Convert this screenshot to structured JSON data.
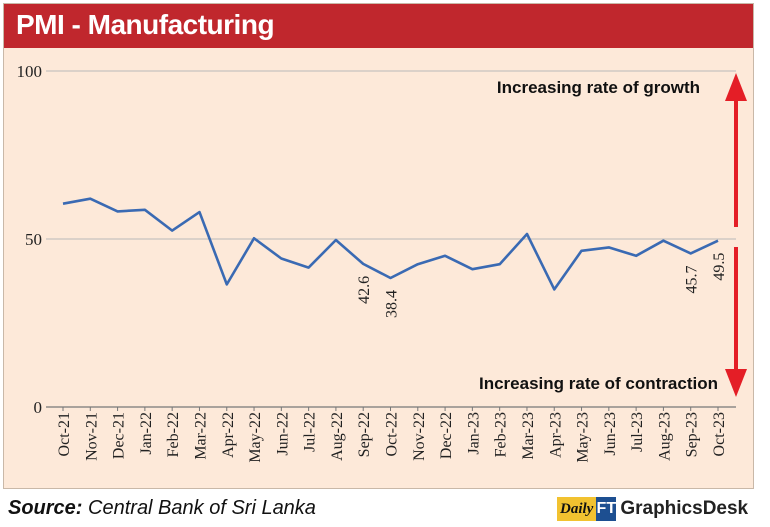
{
  "header": {
    "title": "PMI - Manufacturing"
  },
  "chart_data": {
    "type": "line",
    "title": "PMI - Manufacturing",
    "xlabel": "",
    "ylabel": "",
    "ylim": [
      0,
      100
    ],
    "y_ticks": [
      "0",
      "50",
      "100"
    ],
    "y_tick_values": [
      0,
      50,
      100
    ],
    "grid": "horizontal",
    "categories": [
      "Oct-21",
      "Nov-21",
      "Dec-21",
      "Jan-22",
      "Feb-22",
      "Mar-22",
      "Apr-22",
      "May-22",
      "Jun-22",
      "Jul-22",
      "Aug-22",
      "Sep-22",
      "Oct-22",
      "Nov-22",
      "Dec-22",
      "Jan-23",
      "Feb-23",
      "Mar-23",
      "Apr-23",
      "May-23",
      "Jun-23",
      "Jul-23",
      "Aug-23",
      "Sep-23",
      "Oct-23"
    ],
    "series": [
      {
        "values": [
          60.5,
          62.0,
          58.2,
          58.7,
          52.5,
          58.0,
          36.5,
          50.2,
          44.2,
          41.5,
          49.7,
          42.6,
          38.4,
          42.5,
          45.0,
          41.0,
          42.5,
          51.5,
          35.0,
          46.5,
          47.5,
          45.0,
          49.5,
          45.7,
          49.5
        ],
        "color": "#3a6ab3"
      }
    ],
    "data_labels": [
      {
        "index": 11,
        "text": "42.6"
      },
      {
        "index": 12,
        "text": "38.4"
      },
      {
        "index": 23,
        "text": "45.7"
      },
      {
        "index": 24,
        "text": "49.5"
      }
    ],
    "annotations": {
      "top": "Increasing rate of growth",
      "bottom": "Increasing rate of contraction"
    },
    "colors": {
      "line": "#3a6ab3",
      "arrow": "#e41e26",
      "background": "#fde9d9",
      "header": "#c0272d",
      "grid": "#b9b9b9"
    }
  },
  "footer": {
    "source_label": "Source:",
    "source_text": "Central Bank of Sri Lanka",
    "logo_daily": "Daily",
    "logo_ft": "FT",
    "logo_text": "GraphicsDesk"
  }
}
